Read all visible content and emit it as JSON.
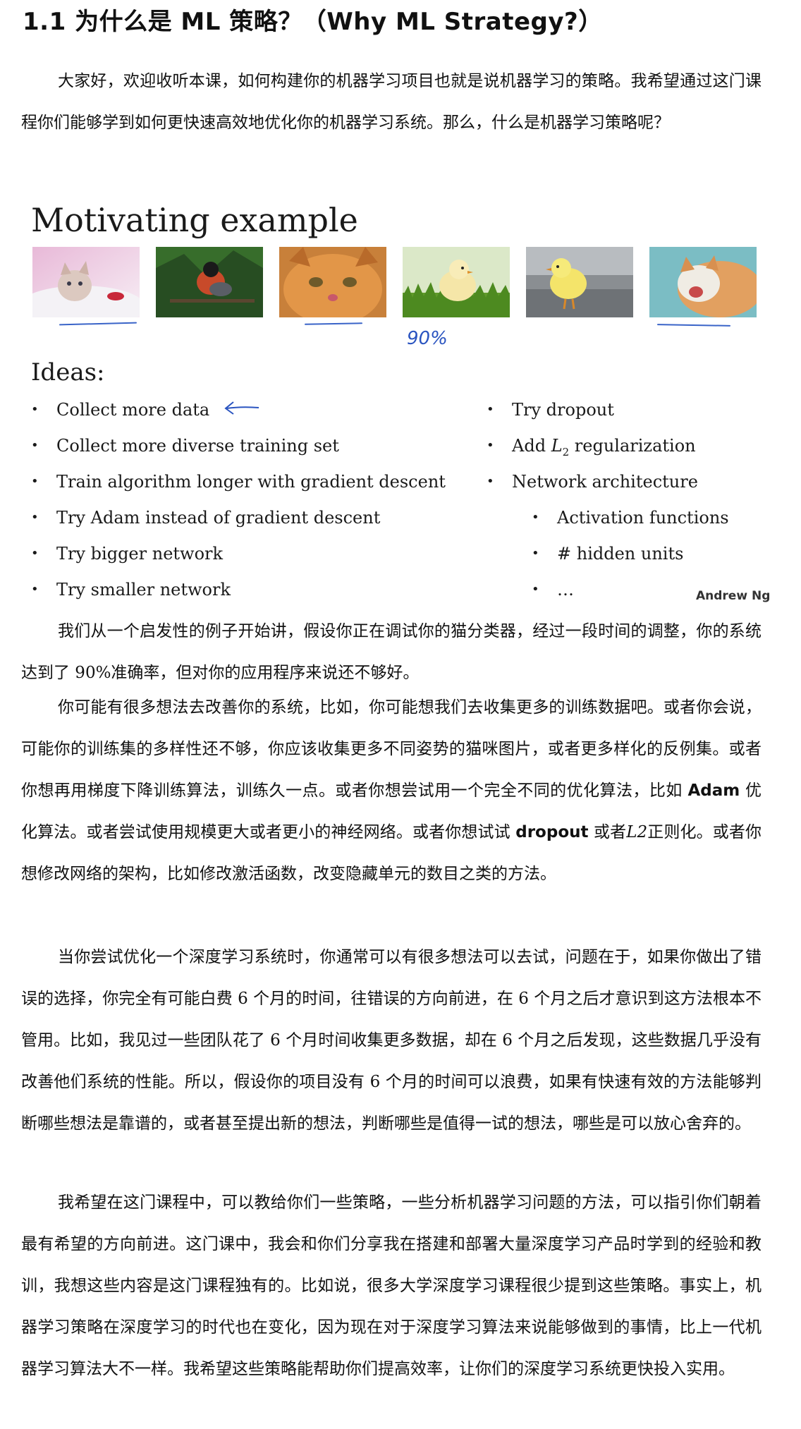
{
  "heading": "1.1  为什么是 ML 策略？（Why ML Strategy?）",
  "intro": "大家好，欢迎收听本课，如何构建你的机器学习项目也就是说机器学习的策略。我希望通过这门课程你们能够学到如何更快速高效地优化你的机器学习系统。那么，什么是机器学习策略呢？",
  "slide": {
    "title": "Motivating example",
    "accuracy_annotation": "90%",
    "ideas_heading": "Ideas:",
    "ideas_left": [
      "Collect more data",
      "Collect more diverse training set",
      "Train algorithm longer with gradient descent",
      "Try Adam instead of gradient descent",
      "Try bigger network",
      "Try smaller network"
    ],
    "ideas_right": [
      "Try dropout",
      "Add L2 regularization",
      "Network architecture"
    ],
    "ideas_right_sub": [
      "Activation functions",
      "# hidden units",
      "…"
    ],
    "l2_prefix": "Add ",
    "l2_var": "L",
    "l2_sub": "2",
    "l2_suffix": " regularization",
    "credit": "Andrew Ng",
    "bullet": "•",
    "photos": [
      "kitten-photo",
      "bird-photo",
      "cat-face-photo",
      "chick-photo",
      "chick-photo-2",
      "cat-photo"
    ]
  },
  "para1": "我们从一个启发性的例子开始讲，假设你正在调试你的猫分类器，经过一段时间的调整，你的系统达到了 90%准确率，但对你的应用程序来说还不够好。",
  "para2": {
    "a": "你可能有很多想法去改善你的系统，比如，你可能想我们去收集更多的训练数据吧。或者你会说，可能你的训练集的多样性还不够，你应该收集更多不同姿势的猫咪图片，或者更多样化的反例集。或者你想再用梯度下降训练算法，训练久一点。或者你想尝试用一个完全不同的优化算法，比如 ",
    "adam": "Adam",
    "b": " 优化算法。或者尝试使用规模更大或者更小的神经网络。或者你想试试 ",
    "dropout": "dropout",
    "c": " 或者",
    "l2": "L2",
    "d": "正则化。或者你想修改网络的架构，比如修改激活函数，改变隐藏单元的数目之类的方法。"
  },
  "para3": "当你尝试优化一个深度学习系统时，你通常可以有很多想法可以去试，问题在于，如果你做出了错误的选择，你完全有可能白费 6 个月的时间，往错误的方向前进，在 6 个月之后才意识到这方法根本不管用。比如，我见过一些团队花了 6 个月时间收集更多数据，却在 6 个月之后发现，这些数据几乎没有改善他们系统的性能。所以，假设你的项目没有 6 个月的时间可以浪费，如果有快速有效的方法能够判断哪些想法是靠谱的，或者甚至提出新的想法，判断哪些是值得一试的想法，哪些是可以放心舍弃的。",
  "para4": "我希望在这门课程中，可以教给你们一些策略，一些分析机器学习问题的方法，可以指引你们朝着最有希望的方向前进。这门课中，我会和你们分享我在搭建和部署大量深度学习产品时学到的经验和教训，我想这些内容是这门课程独有的。比如说，很多大学深度学习课程很少提到这些策略。事实上，机器学习策略在深度学习的时代也在变化，因为现在对于深度学习算法来说能够做到的事情，比上一代机器学习算法大不一样。我希望这些策略能帮助你们提高效率，让你们的深度学习系统更快投入实用。"
}
